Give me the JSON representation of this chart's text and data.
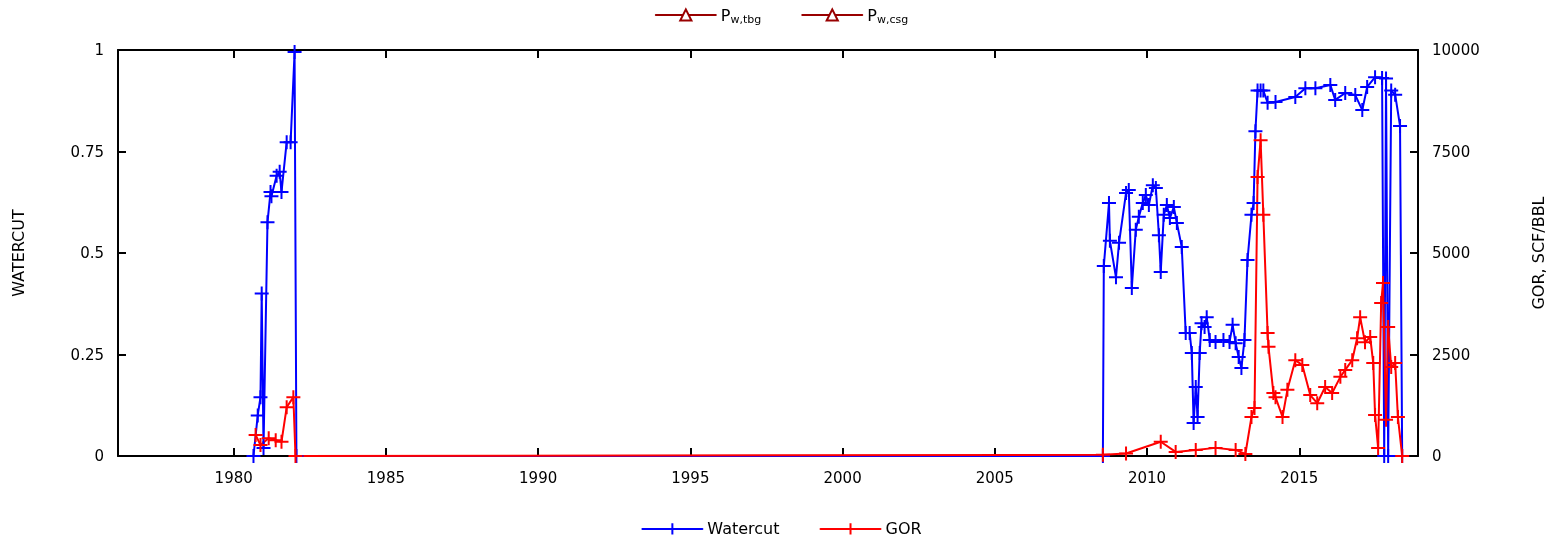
{
  "chart_data": {
    "type": "line",
    "ylabel": "WATERCUT",
    "y2label": "GOR, SCF/BBL",
    "xlim": [
      1976.2,
      2018.9
    ],
    "xticks": [
      1980,
      1985,
      1990,
      1995,
      2000,
      2005,
      2010,
      2015
    ],
    "ylim": [
      0,
      1
    ],
    "yticks": [
      0,
      0.25,
      0.5,
      0.75,
      1
    ],
    "y2lim": [
      0,
      10000
    ],
    "y2ticks": [
      0,
      2500,
      5000,
      7500,
      10000
    ],
    "grid": false,
    "legend": "bottom",
    "line_style": "solid",
    "series": [
      {
        "name": "P$_{w,tbg}$",
        "color": "#990000",
        "marker": "triangle"
      },
      {
        "name": "P$_{w,csg}$",
        "color": "#990000",
        "marker": "triangle"
      },
      {
        "name": "Watercut",
        "color": "#0000ff",
        "marker": "cross",
        "x": [
          1980.65,
          1980.79,
          1980.88,
          1980.92,
          1980.98,
          1981.11,
          1981.21,
          1981.24,
          1981.41,
          1981.51,
          1981.57,
          1981.74,
          1981.87,
          1982.0,
          1982.06,
          2008.55,
          2008.58,
          2008.75,
          2008.78,
          2008.98,
          2009.08,
          2009.31,
          2009.4,
          2009.5,
          2009.63,
          2009.73,
          2009.86,
          2009.96,
          2010.06,
          2010.19,
          2010.29,
          2010.39,
          2010.45,
          2010.55,
          2010.65,
          2010.75,
          2010.88,
          2010.98,
          2011.14,
          2011.27,
          2011.4,
          2011.47,
          2011.53,
          2011.6,
          2011.66,
          2011.73,
          2011.79,
          2011.89,
          2011.96,
          2012.06,
          2012.25,
          2012.51,
          2012.71,
          2012.81,
          2012.91,
          2013.01,
          2013.1,
          2013.2,
          2013.3,
          2013.43,
          2013.5,
          2013.56,
          2013.63,
          2013.73,
          2013.82,
          2013.96,
          2014.22,
          2014.87,
          2015.2,
          2015.53,
          2016.02,
          2016.18,
          2016.51,
          2016.84,
          2017.07,
          2017.23,
          2017.49,
          2017.72,
          2017.79,
          2017.85,
          2017.92,
          2018.02,
          2018.15,
          2018.31,
          2018.38
        ],
        "values": [
          0.0,
          0.1,
          0.145,
          0.4,
          0.02,
          0.576,
          0.65,
          0.64,
          0.69,
          0.7,
          0.65,
          0.773,
          0.773,
          0.995,
          0.0,
          0.0,
          0.468,
          0.623,
          0.53,
          0.44,
          0.525,
          0.648,
          0.655,
          0.414,
          0.557,
          0.589,
          0.623,
          0.643,
          0.618,
          0.667,
          0.66,
          0.544,
          0.453,
          0.594,
          0.618,
          0.586,
          0.613,
          0.574,
          0.515,
          0.303,
          0.303,
          0.254,
          0.081,
          0.17,
          0.096,
          0.254,
          0.327,
          0.318,
          0.342,
          0.286,
          0.281,
          0.286,
          0.281,
          0.323,
          0.278,
          0.244,
          0.217,
          0.286,
          0.483,
          0.594,
          0.623,
          0.8,
          0.9,
          0.9,
          0.9,
          0.87,
          0.872,
          0.884,
          0.906,
          0.906,
          0.914,
          0.877,
          0.894,
          0.889,
          0.852,
          0.909,
          0.933,
          0.931,
          0.0,
          0.93,
          0.0,
          0.9,
          0.89,
          0.813,
          0.0
        ]
      },
      {
        "name": "GOR",
        "color": "#ff0000",
        "marker": "cross",
        "axis": "y2",
        "x": [
          1980.72,
          1980.88,
          1981.15,
          1981.38,
          1981.57,
          1981.74,
          1981.96,
          1982.03,
          2008.55,
          2009.31,
          2010.45,
          2010.94,
          2011.6,
          2012.25,
          2012.91,
          2013.23,
          2013.43,
          2013.53,
          2013.63,
          2013.73,
          2013.82,
          2013.96,
          2013.99,
          2014.15,
          2014.22,
          2014.45,
          2014.61,
          2014.87,
          2015.1,
          2015.36,
          2015.59,
          2015.85,
          2016.08,
          2016.35,
          2016.51,
          2016.74,
          2016.9,
          2017.0,
          2017.16,
          2017.33,
          2017.43,
          2017.49,
          2017.59,
          2017.69,
          2017.75,
          2017.85,
          2017.92,
          2018.02,
          2018.15,
          2018.24,
          2018.38
        ],
        "values": [
          520,
          270,
          440,
          390,
          350,
          1200,
          1450,
          0,
          30,
          60,
          350,
          100,
          150,
          200,
          150,
          50,
          960,
          1180,
          6870,
          7780,
          5940,
          3030,
          2690,
          1550,
          1450,
          960,
          1630,
          2360,
          2240,
          1500,
          1300,
          1700,
          1550,
          1950,
          2120,
          2360,
          2900,
          3420,
          2800,
          2930,
          2290,
          1010,
          200,
          3770,
          4260,
          890,
          3180,
          2190,
          2290,
          960,
          0
        ]
      }
    ]
  }
}
